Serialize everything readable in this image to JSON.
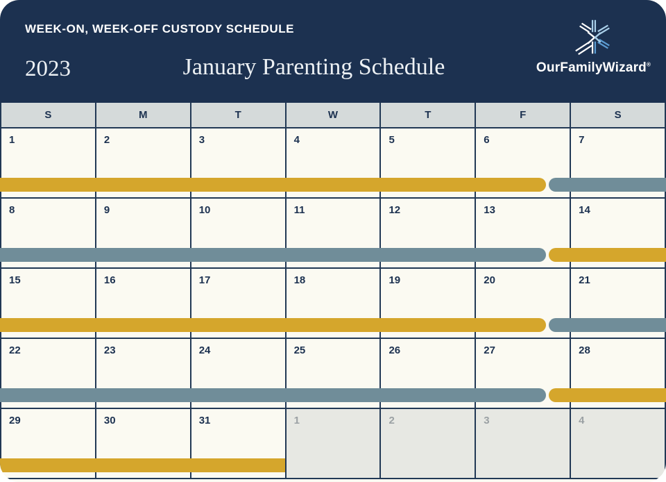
{
  "header": {
    "banner": "WEEK-ON, WEEK-OFF CUSTODY SCHEDULE",
    "year": "2023",
    "title": "January Parenting Schedule",
    "brand": "OurFamilyWizard",
    "brand_mark": "®"
  },
  "colors": {
    "navy": "#1C3150",
    "line": "#213855",
    "cream": "#FBFAF2",
    "dayhdr": "#D5DADA",
    "gold": "#D5A62C",
    "slate": "#708D99",
    "off": "#E7E8E3",
    "offtext": "#9BA1A4",
    "titletext": "#EDF1F4",
    "bluelight": "#A9CFE9",
    "bluemid": "#5C9CD2"
  },
  "day_headers": [
    "S",
    "M",
    "T",
    "W",
    "T",
    "F",
    "S"
  ],
  "weeks": [
    {
      "dates": [
        {
          "label": "1",
          "in_month": true
        },
        {
          "label": "2",
          "in_month": true
        },
        {
          "label": "3",
          "in_month": true
        },
        {
          "label": "4",
          "in_month": true
        },
        {
          "label": "5",
          "in_month": true
        },
        {
          "label": "6",
          "in_month": true
        },
        {
          "label": "7",
          "in_month": true
        }
      ],
      "bars": [
        {
          "color": "gold",
          "start": 0,
          "end": 5.74,
          "round_start": false,
          "round_end": true
        },
        {
          "color": "slate",
          "start": 5.77,
          "end": 7,
          "round_start": true,
          "round_end": false
        }
      ]
    },
    {
      "dates": [
        {
          "label": "8",
          "in_month": true
        },
        {
          "label": "9",
          "in_month": true
        },
        {
          "label": "10",
          "in_month": true
        },
        {
          "label": "11",
          "in_month": true
        },
        {
          "label": "12",
          "in_month": true
        },
        {
          "label": "13",
          "in_month": true
        },
        {
          "label": "14",
          "in_month": true
        }
      ],
      "bars": [
        {
          "color": "slate",
          "start": 0,
          "end": 5.74,
          "round_start": false,
          "round_end": true
        },
        {
          "color": "gold",
          "start": 5.77,
          "end": 7,
          "round_start": true,
          "round_end": false
        }
      ]
    },
    {
      "dates": [
        {
          "label": "15",
          "in_month": true
        },
        {
          "label": "16",
          "in_month": true
        },
        {
          "label": "17",
          "in_month": true
        },
        {
          "label": "18",
          "in_month": true
        },
        {
          "label": "19",
          "in_month": true
        },
        {
          "label": "20",
          "in_month": true
        },
        {
          "label": "21",
          "in_month": true
        }
      ],
      "bars": [
        {
          "color": "gold",
          "start": 0,
          "end": 5.74,
          "round_start": false,
          "round_end": true
        },
        {
          "color": "slate",
          "start": 5.77,
          "end": 7,
          "round_start": true,
          "round_end": false
        }
      ]
    },
    {
      "dates": [
        {
          "label": "22",
          "in_month": true
        },
        {
          "label": "23",
          "in_month": true
        },
        {
          "label": "24",
          "in_month": true
        },
        {
          "label": "25",
          "in_month": true
        },
        {
          "label": "26",
          "in_month": true
        },
        {
          "label": "27",
          "in_month": true
        },
        {
          "label": "28",
          "in_month": true
        }
      ],
      "bars": [
        {
          "color": "slate",
          "start": 0,
          "end": 5.74,
          "round_start": false,
          "round_end": true
        },
        {
          "color": "gold",
          "start": 5.77,
          "end": 7,
          "round_start": true,
          "round_end": false
        }
      ]
    },
    {
      "dates": [
        {
          "label": "29",
          "in_month": true
        },
        {
          "label": "30",
          "in_month": true
        },
        {
          "label": "31",
          "in_month": true
        },
        {
          "label": "1",
          "in_month": false
        },
        {
          "label": "2",
          "in_month": false
        },
        {
          "label": "3",
          "in_month": false
        },
        {
          "label": "4",
          "in_month": false
        }
      ],
      "bars": [
        {
          "color": "gold",
          "start": 0,
          "end": 3,
          "round_start": false,
          "round_end": false
        }
      ]
    }
  ]
}
